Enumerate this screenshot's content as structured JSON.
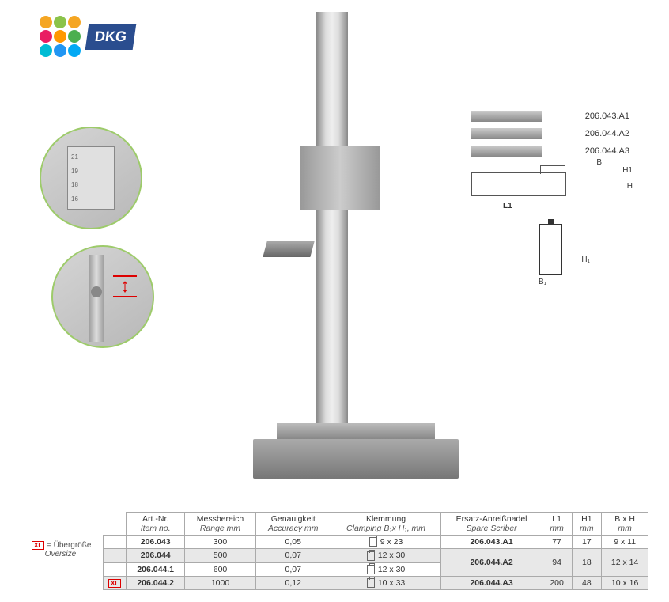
{
  "logo": {
    "text": "DKG",
    "dot_colors": [
      "#f5a623",
      "#8bc34a",
      "#f5a623",
      "#e91e63",
      "#ff9800",
      "#4caf50",
      "#00bcd4",
      "#2196f3",
      "#03a9f4"
    ]
  },
  "detail1_ticks": [
    "21",
    "19",
    "18",
    "16"
  ],
  "parts": [
    {
      "label": "206.043.A1"
    },
    {
      "label": "206.044.A2"
    },
    {
      "label": "206.044.A3"
    }
  ],
  "diagram": {
    "B": "B",
    "H1": "H1",
    "H": "H",
    "L1": "L1",
    "B1": "B₁",
    "H1_side": "H₁"
  },
  "legend": {
    "badge": "XL",
    "de": "= Übergröße",
    "en": "Oversize"
  },
  "headers": {
    "art": {
      "de": "Art.-Nr.",
      "en": "Item no."
    },
    "range": {
      "de": "Messbereich",
      "en": "Range mm"
    },
    "acc": {
      "de": "Genauigkeit",
      "en": "Accuracy mm"
    },
    "clamp": {
      "de": "Klemmung",
      "en": "Clamping B₁x H₁, mm"
    },
    "scriber": {
      "de": "Ersatz-Anreißnadel",
      "en": "Spare Scriber"
    },
    "l1": {
      "de": "L1",
      "en": "mm"
    },
    "h1": {
      "de": "H1",
      "en": "mm"
    },
    "bh": {
      "de": "B x H",
      "en": "mm"
    }
  },
  "rows": [
    {
      "xl": "",
      "art": "206.043",
      "range": "300",
      "acc": "0,05",
      "clamp": "9  x   23",
      "scriber": "206.043.A1",
      "l1": "77",
      "h1": "17",
      "bh": "9 x 11",
      "shade": false,
      "rowspan": 1
    },
    {
      "xl": "",
      "art": "206.044",
      "range": "500",
      "acc": "0,07",
      "clamp": "12  x   30",
      "scriber": "206.044.A2",
      "l1": "94",
      "h1": "18",
      "bh": "12 x 14",
      "shade": true,
      "rowspan": 2
    },
    {
      "xl": "",
      "art": "206.044.1",
      "range": "600",
      "acc": "0,07",
      "clamp": "12  x   30",
      "scriber": "",
      "l1": "",
      "h1": "",
      "bh": "",
      "shade": false,
      "rowspan": 0
    },
    {
      "xl": "XL",
      "art": "206.044.2",
      "range": "1000",
      "acc": "0,12",
      "clamp": "10  x   33",
      "scriber": "206.044.A3",
      "l1": "200",
      "h1": "48",
      "bh": "10 x 16",
      "shade": true,
      "rowspan": 1
    }
  ]
}
